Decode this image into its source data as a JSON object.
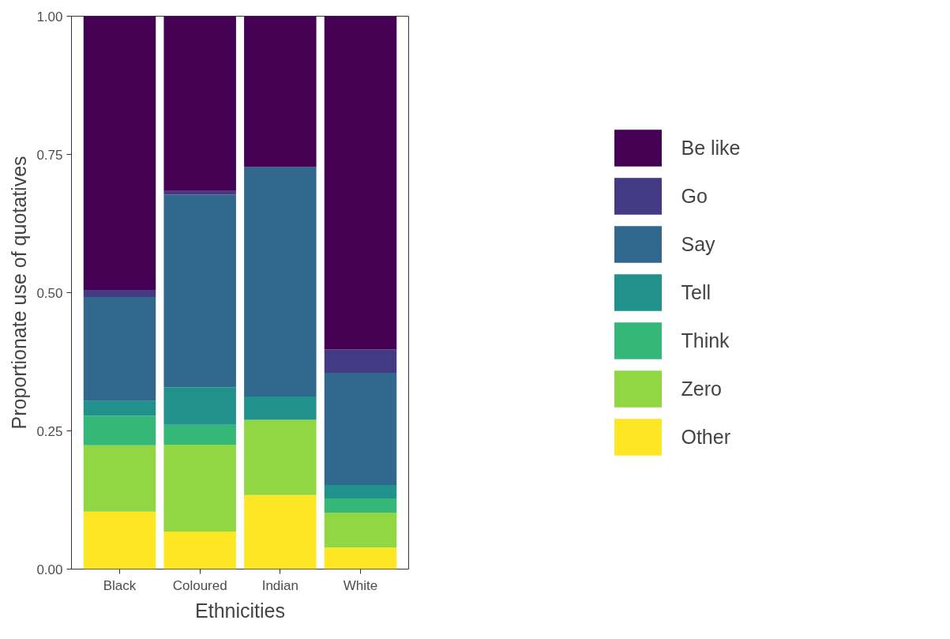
{
  "chart_data": {
    "type": "bar",
    "stacked": true,
    "xlabel": "Ethnicities",
    "ylabel": "Proportionate use of quotatives",
    "categories": [
      "Black",
      "Coloured",
      "Indian",
      "White"
    ],
    "ylim": [
      0,
      1
    ],
    "yticks": [
      {
        "value": 0,
        "label": "0.00"
      },
      {
        "value": 0.25,
        "label": "0.25"
      },
      {
        "value": 0.5,
        "label": "0.50"
      },
      {
        "value": 0.75,
        "label": "0.75"
      },
      {
        "value": 1,
        "label": "1.00"
      }
    ],
    "grid": false,
    "legend": "right",
    "series": [
      {
        "name": "Other",
        "color": "#fde725",
        "values": [
          0.104,
          0.068,
          0.134,
          0.039
        ]
      },
      {
        "name": "Zero",
        "color": "#90d743",
        "values": [
          0.12,
          0.157,
          0.136,
          0.063
        ]
      },
      {
        "name": "Think",
        "color": "#35b779",
        "values": [
          0.053,
          0.036,
          0,
          0.026
        ]
      },
      {
        "name": "Tell",
        "color": "#21918c",
        "values": [
          0.027,
          0.068,
          0.042,
          0.024
        ]
      },
      {
        "name": "Say",
        "color": "#31688e",
        "values": [
          0.188,
          0.348,
          0.415,
          0.203
        ]
      },
      {
        "name": "Go",
        "color": "#443983",
        "values": [
          0.013,
          0.007,
          0,
          0.042
        ]
      },
      {
        "name": "Be like",
        "color": "#440154",
        "values": [
          0.495,
          0.316,
          0.273,
          0.603
        ]
      }
    ]
  }
}
